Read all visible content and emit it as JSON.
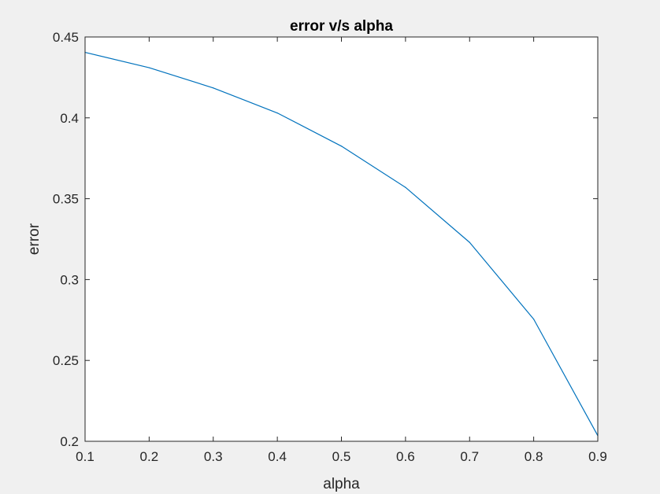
{
  "window": {
    "background": "#f0f0f0"
  },
  "chart_data": {
    "type": "line",
    "title": "error v/s alpha",
    "xlabel": "alpha",
    "ylabel": "error",
    "xlim": [
      0.1,
      0.9
    ],
    "ylim": [
      0.2,
      0.45
    ],
    "xticks": [
      0.1,
      0.2,
      0.3,
      0.4,
      0.5,
      0.6,
      0.7,
      0.8,
      0.9
    ],
    "xtick_labels": [
      "0.1",
      "0.2",
      "0.3",
      "0.4",
      "0.5",
      "0.6",
      "0.7",
      "0.8",
      "0.9"
    ],
    "yticks": [
      0.2,
      0.25,
      0.3,
      0.35,
      0.4,
      0.45
    ],
    "ytick_labels": [
      "0.2",
      "0.25",
      "0.3",
      "0.35",
      "0.4",
      "0.45"
    ],
    "grid": false,
    "legend": false,
    "series": [
      {
        "color": "#0072bd",
        "x": [
          0.1,
          0.2,
          0.3,
          0.4,
          0.5,
          0.6,
          0.7,
          0.8,
          0.9
        ],
        "y": [
          0.4405,
          0.431,
          0.4185,
          0.403,
          0.3825,
          0.357,
          0.323,
          0.2755,
          0.2035
        ]
      }
    ]
  }
}
